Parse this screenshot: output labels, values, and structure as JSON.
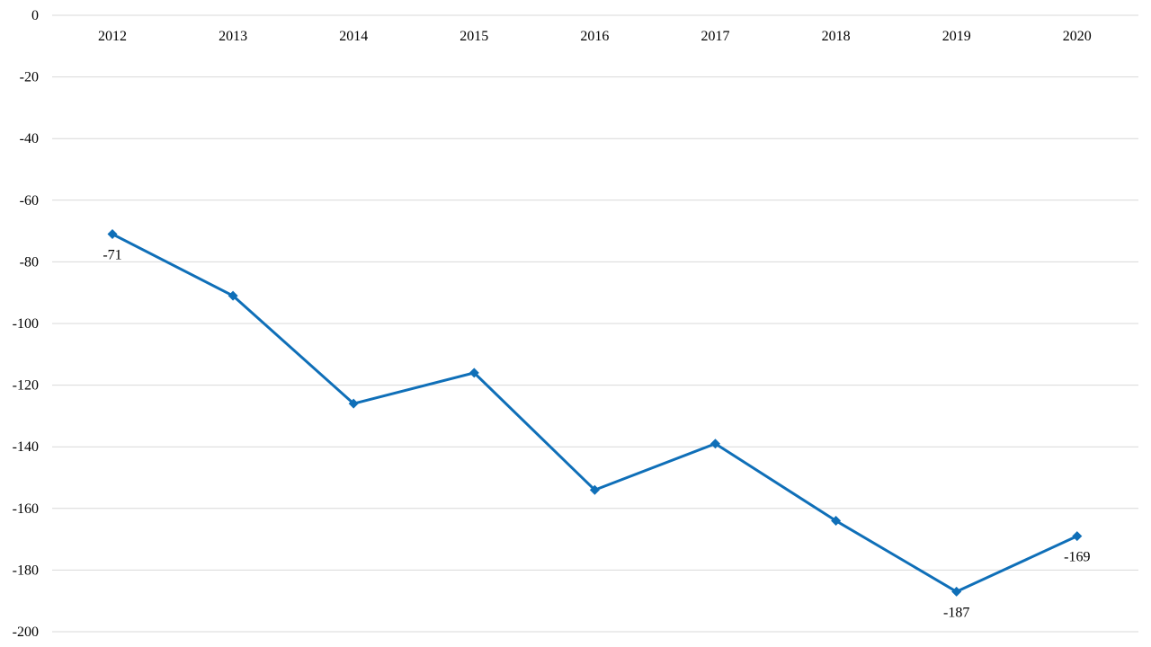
{
  "chart_data": {
    "type": "line",
    "title": "",
    "xlabel": "",
    "ylabel": "",
    "x": [
      "2012",
      "2013",
      "2014",
      "2015",
      "2016",
      "2017",
      "2018",
      "2019",
      "2020"
    ],
    "y_ticks": [
      "0",
      "-20",
      "-40",
      "-60",
      "-80",
      "-100",
      "-120",
      "-140",
      "-160",
      "-180",
      "-200"
    ],
    "ylim": [
      -200,
      0
    ],
    "grid": true,
    "x_axis_position": "top",
    "series": [
      {
        "values": [
          -71,
          -91,
          -126,
          -116,
          -154,
          -139,
          -164,
          -187,
          -169
        ],
        "color": "#0f6fb8",
        "marker": "diamond"
      }
    ],
    "data_labels": [
      {
        "index": 0,
        "text": "-71"
      },
      {
        "index": 7,
        "text": "-187"
      },
      {
        "index": 8,
        "text": "-169"
      }
    ]
  }
}
